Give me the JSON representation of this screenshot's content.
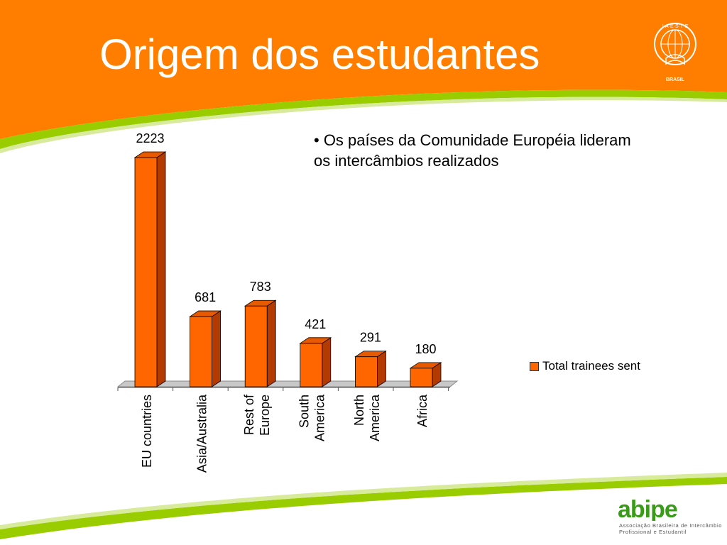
{
  "slide": {
    "title": "Origem dos estudantes",
    "bullet": "• Os países da Comunidade Européia lideram os intercâmbios realizados"
  },
  "colors": {
    "header_orange": "#ff7e00",
    "accent_green": "#9acd00",
    "bar_front": "#ff6600",
    "bar_side": "#b33a00",
    "logo_green": "#3a9a1a"
  },
  "chart_data": {
    "type": "bar",
    "categories": [
      "EU countries",
      "Asia/Australia",
      "Rest of Europe",
      "South America",
      "North America",
      "Africa"
    ],
    "category_lines": [
      [
        "EU countries"
      ],
      [
        "Asia/Australia"
      ],
      [
        "Rest of",
        "Europe"
      ],
      [
        "South",
        "America"
      ],
      [
        "North",
        "America"
      ],
      [
        "Africa"
      ]
    ],
    "series": [
      {
        "name": "Total trainees sent",
        "values": [
          2223,
          681,
          783,
          421,
          291,
          180
        ]
      }
    ],
    "data_labels": [
      "2223",
      "681",
      "783",
      "421",
      "291",
      "180"
    ],
    "ylim": [
      0,
      2223
    ],
    "style": "3d-column",
    "gridlines": false,
    "legend_position": "right"
  },
  "logos": {
    "seal_icon": "iaeste-seal-icon",
    "seal_text": "I·A·E·S·T·E",
    "seal_caption": "BRASIL",
    "abipe_icon": "abipe-logo-icon",
    "abipe_wordmark": "abipe",
    "abipe_tagline_1": "Associação Brasileira de Intercâmbio",
    "abipe_tagline_2": "Profissional e Estudantil"
  }
}
